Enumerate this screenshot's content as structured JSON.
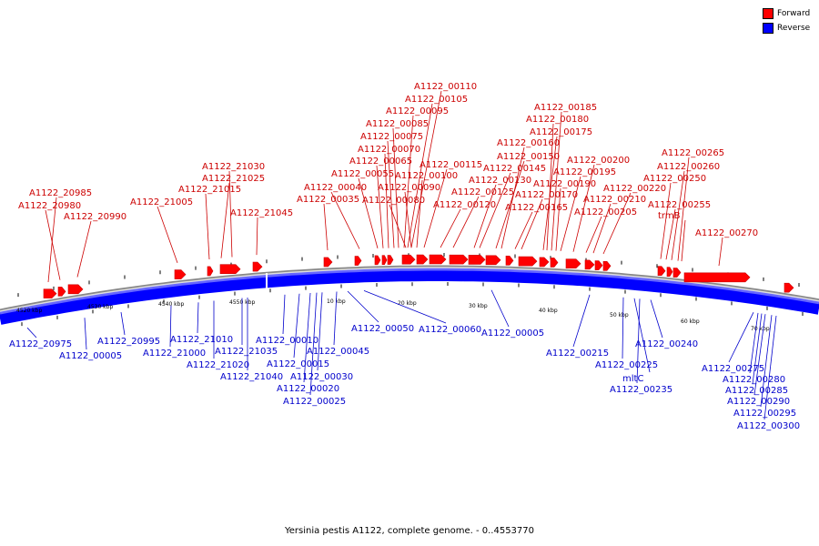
{
  "legend": {
    "forward_label": "Forward",
    "forward_color": "#ff0000",
    "reverse_label": "Reverse",
    "reverse_color": "#0000ff"
  },
  "footer": {
    "title": "Yersinia pestis A1122, complete genome. - 0..4553770"
  },
  "scale_labels": [
    "4520 kbp",
    "4530 kbp",
    "4540 kbp",
    "4550 kbp",
    "10 kbp",
    "20 kbp",
    "30 kbp",
    "40 kbp",
    "50 kbp",
    "60 kbp",
    "70 kbp"
  ],
  "forward_genes": [
    "A1122_20985",
    "A1122_20980",
    "A1122_20990",
    "A1122_21005",
    "A1122_21015",
    "A1122_21025",
    "A1122_21030",
    "A1122_21045",
    "A1122_00035",
    "A1122_00040",
    "A1122_00055",
    "A1122_00065",
    "A1122_00070",
    "A1122_00075",
    "A1122_00085",
    "A1122_00095",
    "A1122_00105",
    "A1122_00110",
    "A1122_00080",
    "A1122_00090",
    "A1122_00100",
    "A1122_00115",
    "A1122_00120",
    "A1122_00125",
    "A1122_00130",
    "A1122_00145",
    "A1122_00150",
    "A1122_00160",
    "A1122_00165",
    "A1122_00170",
    "A1122_00175",
    "A1122_00180",
    "A1122_00185",
    "A1122_00190",
    "A1122_00195",
    "A1122_00200",
    "A1122_00205",
    "A1122_00210",
    "A1122_00220",
    "A1122_00250",
    "A1122_00255",
    "A1122_00260",
    "A1122_00265",
    "trmB",
    "A1122_00270"
  ],
  "reverse_genes": [
    "A1122_20975",
    "A1122_00005",
    "A1122_20995",
    "A1122_21000",
    "A1122_21010",
    "A1122_21020",
    "A1122_21035",
    "A1122_21040",
    "A1122_00010",
    "A1122_00015",
    "A1122_00020",
    "A1122_00025",
    "A1122_00030",
    "A1122_00045",
    "A1122_00050",
    "A1122_00060",
    "A1122_00005",
    "A1122_00215",
    "A1122_00225",
    "mltC",
    "A1122_00235",
    "A1122_00240",
    "A1122_00275",
    "A1122_00280",
    "A1122_00285",
    "A1122_00290",
    "A1122_00295",
    "A1122_00300"
  ]
}
